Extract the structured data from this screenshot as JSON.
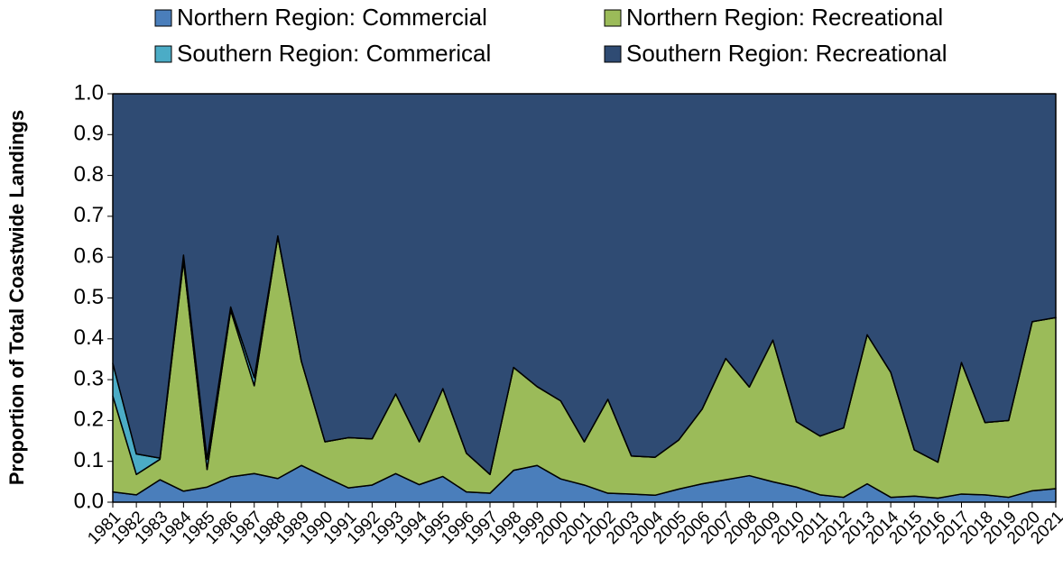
{
  "chart_data": {
    "type": "area",
    "stacked": true,
    "y_label": "Proportion of Total Coastwide Landings",
    "categories": [
      "1981",
      "1982",
      "1983",
      "1984",
      "1985",
      "1986",
      "1987",
      "1988",
      "1989",
      "1990",
      "1991",
      "1992",
      "1993",
      "1994",
      "1995",
      "1996",
      "1997",
      "1998",
      "1999",
      "2000",
      "2001",
      "2002",
      "2003",
      "2004",
      "2005",
      "2006",
      "2007",
      "2008",
      "2009",
      "2010",
      "2011",
      "2012",
      "2013",
      "2014",
      "2015",
      "2016",
      "2017",
      "2018",
      "2019",
      "2020",
      "2021"
    ],
    "series": [
      {
        "name": "Northern Region: Commercial",
        "color": "#4a7ebb",
        "values": [
          0.025,
          0.018,
          0.055,
          0.027,
          0.037,
          0.062,
          0.07,
          0.058,
          0.09,
          0.062,
          0.035,
          0.042,
          0.07,
          0.043,
          0.063,
          0.025,
          0.022,
          0.078,
          0.09,
          0.057,
          0.042,
          0.022,
          0.02,
          0.017,
          0.032,
          0.045,
          0.055,
          0.065,
          0.05,
          0.037,
          0.018,
          0.012,
          0.045,
          0.012,
          0.015,
          0.01,
          0.02,
          0.018,
          0.012,
          0.028,
          0.033
        ]
      },
      {
        "name": "Northern Region: Recreational",
        "color": "#9bbb59",
        "values": [
          0.235,
          0.05,
          0.05,
          0.563,
          0.043,
          0.408,
          0.215,
          0.592,
          0.255,
          0.086,
          0.123,
          0.113,
          0.195,
          0.105,
          0.215,
          0.095,
          0.046,
          0.252,
          0.193,
          0.191,
          0.106,
          0.23,
          0.093,
          0.093,
          0.12,
          0.183,
          0.297,
          0.217,
          0.347,
          0.16,
          0.144,
          0.17,
          0.365,
          0.306,
          0.113,
          0.088,
          0.322,
          0.177,
          0.188,
          0.414,
          0.419
        ]
      },
      {
        "name": "Southern Region: Commerical",
        "color": "#4bacc6",
        "values": [
          0.08,
          0.05,
          0.003,
          0.015,
          0.025,
          0.008,
          0.02,
          0.002,
          0,
          0,
          0,
          0,
          0,
          0,
          0,
          0,
          0,
          0,
          0,
          0,
          0,
          0,
          0,
          0,
          0,
          0,
          0,
          0,
          0,
          0,
          0,
          0,
          0,
          0,
          0,
          0,
          0,
          0,
          0,
          0,
          0
        ]
      },
      {
        "name": "Southern Region: Recreational",
        "color": "#2f4b73",
        "values": [
          0.66,
          0.882,
          0.892,
          0.395,
          0.895,
          0.522,
          0.695,
          0.348,
          0.655,
          0.852,
          0.842,
          0.845,
          0.735,
          0.852,
          0.722,
          0.88,
          0.932,
          0.67,
          0.717,
          0.752,
          0.852,
          0.748,
          0.887,
          0.89,
          0.848,
          0.772,
          0.648,
          0.718,
          0.603,
          0.803,
          0.838,
          0.818,
          0.59,
          0.682,
          0.872,
          0.902,
          0.658,
          0.805,
          0.8,
          0.558,
          0.548
        ]
      }
    ],
    "ylim": [
      0,
      1
    ],
    "yticks": [
      {
        "value": 0,
        "label": "0.0"
      },
      0.1,
      0.2,
      0.3,
      0.4,
      0.5,
      0.6,
      0.7,
      0.8,
      0.9,
      {
        "value": 1,
        "label": "1.0"
      }
    ]
  }
}
